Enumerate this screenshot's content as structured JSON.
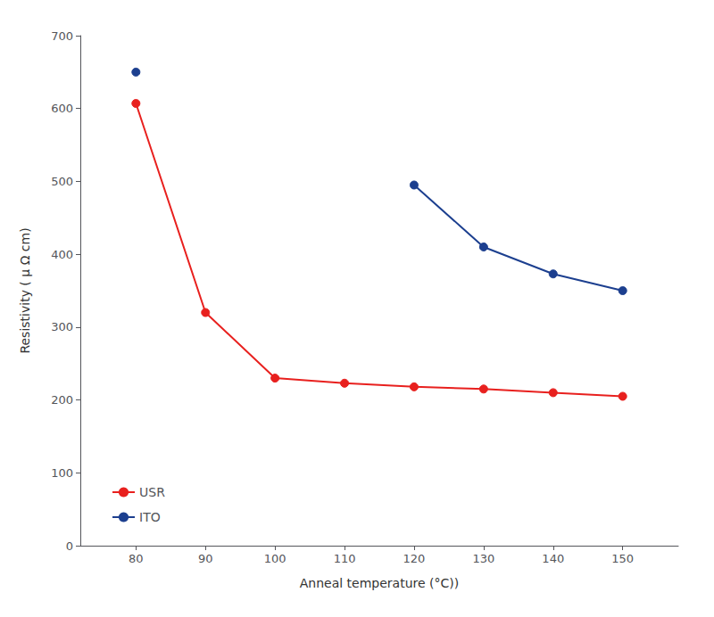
{
  "chart_data": {
    "type": "line",
    "x": [
      80,
      90,
      100,
      110,
      120,
      130,
      140,
      150
    ],
    "series": [
      {
        "name": "USR",
        "color": "#e8201e",
        "marker": "circle",
        "values": [
          607,
          320,
          230,
          223,
          218,
          215,
          210,
          205
        ]
      },
      {
        "name": "ITO",
        "color": "#1c3f8f",
        "marker": "circle",
        "values": [
          650,
          null,
          null,
          null,
          495,
          410,
          373,
          350
        ]
      }
    ],
    "xlabel": "Anneal temperature (°C))",
    "ylabel": "Resistivity ( μ Ω cm)",
    "xlim": [
      72,
      158
    ],
    "ylim": [
      0,
      700
    ],
    "xticks": [
      80,
      90,
      100,
      110,
      120,
      130,
      140,
      150
    ],
    "yticks": [
      0,
      100,
      200,
      300,
      400,
      500,
      600,
      700
    ],
    "grid": false,
    "legend": "lower left"
  }
}
